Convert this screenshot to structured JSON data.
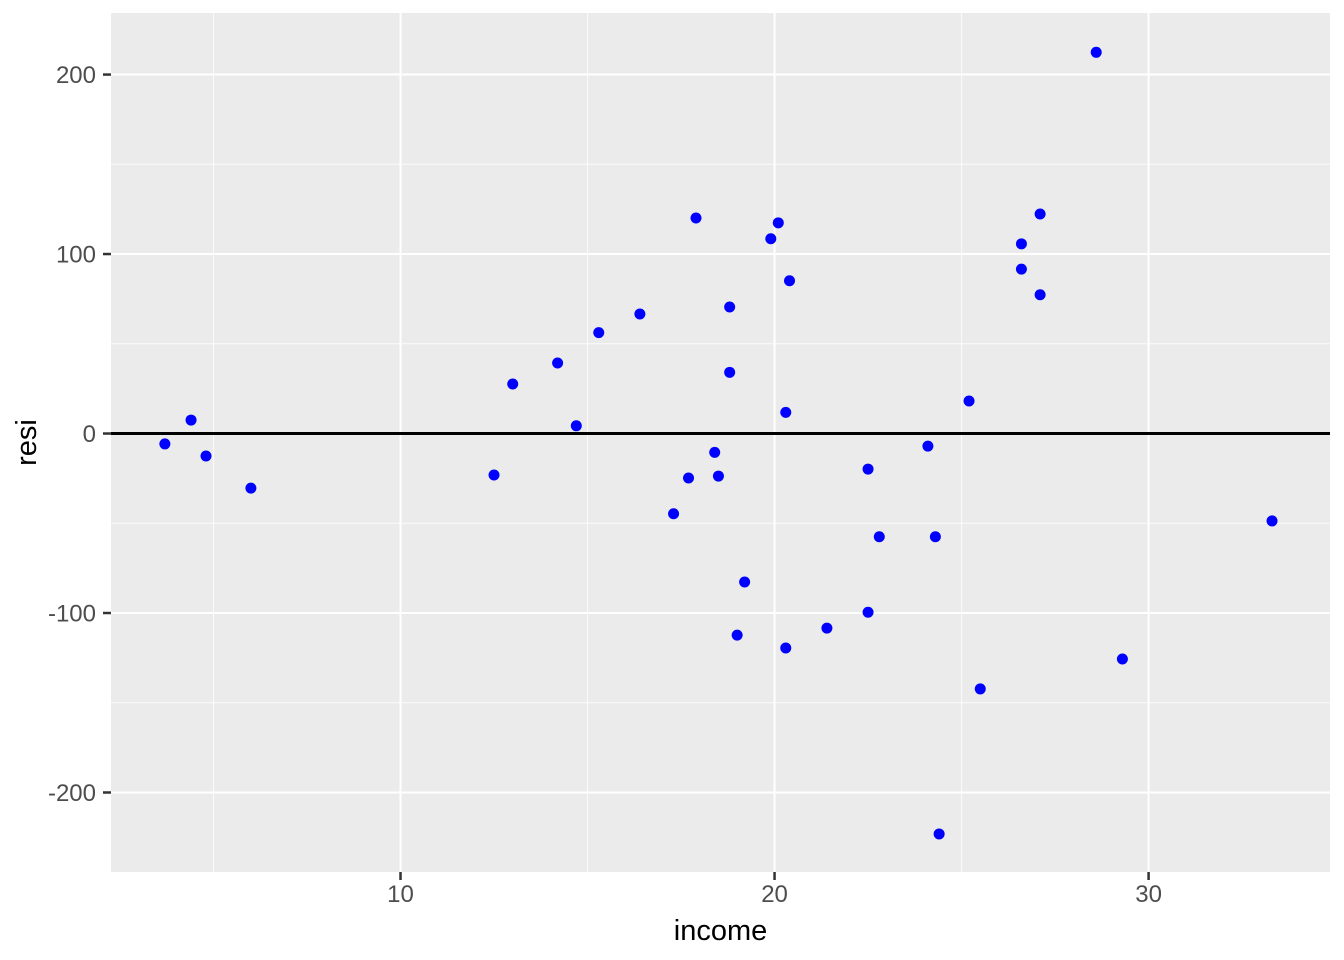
{
  "chart_data": {
    "type": "scatter",
    "title": "",
    "xlabel": "income",
    "ylabel": "resi",
    "legend": false,
    "grid": true,
    "xlim": [
      2.26,
      34.85
    ],
    "ylim": [
      -244.3,
      234.3
    ],
    "x_ticks": [
      10,
      20,
      30
    ],
    "x_tick_labels": [
      "10",
      "20",
      "30"
    ],
    "x_minor_ticks": [
      5,
      15,
      25,
      35
    ],
    "y_ticks": [
      -200,
      -100,
      0,
      100,
      200
    ],
    "y_tick_labels": [
      "-200",
      "-100",
      "0",
      "100",
      "200"
    ],
    "y_minor_ticks": [
      -250,
      -150,
      -50,
      50,
      150,
      250
    ],
    "reference_line_y": 0,
    "colors": {
      "point": "#0000FF",
      "panel_background": "#EBEBEB",
      "grid_major": "#FFFFFF",
      "grid_minor": "#FFFFFF",
      "tick_mark": "#333333",
      "tick_label": "#4D4D4D",
      "axis_title": "#000000",
      "reference_line": "#000000"
    },
    "points": [
      {
        "income": 3.7,
        "resi": -5.8
      },
      {
        "income": 4.4,
        "resi": 7.5
      },
      {
        "income": 4.8,
        "resi": -12.5
      },
      {
        "income": 6.0,
        "resi": -30.4
      },
      {
        "income": 12.5,
        "resi": -23.1
      },
      {
        "income": 13.0,
        "resi": 27.6
      },
      {
        "income": 14.2,
        "resi": 39.3
      },
      {
        "income": 14.7,
        "resi": 4.3
      },
      {
        "income": 15.3,
        "resi": 56.2
      },
      {
        "income": 16.4,
        "resi": 66.6
      },
      {
        "income": 17.3,
        "resi": -44.7
      },
      {
        "income": 17.7,
        "resi": -24.8
      },
      {
        "income": 17.9,
        "resi": 120.1
      },
      {
        "income": 18.4,
        "resi": -10.5
      },
      {
        "income": 18.5,
        "resi": -23.7
      },
      {
        "income": 18.8,
        "resi": 70.5
      },
      {
        "income": 18.8,
        "resi": 34.1
      },
      {
        "income": 19.0,
        "resi": -112.3
      },
      {
        "income": 19.2,
        "resi": -82.7
      },
      {
        "income": 19.9,
        "resi": 108.5
      },
      {
        "income": 20.1,
        "resi": 117.4
      },
      {
        "income": 20.3,
        "resi": -119.5
      },
      {
        "income": 20.3,
        "resi": 11.8
      },
      {
        "income": 20.4,
        "resi": 85.1
      },
      {
        "income": 21.4,
        "resi": -108.4
      },
      {
        "income": 22.5,
        "resi": -99.6
      },
      {
        "income": 22.5,
        "resi": -19.8
      },
      {
        "income": 22.8,
        "resi": -57.5
      },
      {
        "income": 24.1,
        "resi": -7.0
      },
      {
        "income": 24.3,
        "resi": -57.5
      },
      {
        "income": 24.4,
        "resi": -223.1
      },
      {
        "income": 25.2,
        "resi": 18.1
      },
      {
        "income": 25.5,
        "resi": -142.3
      },
      {
        "income": 26.6,
        "resi": 105.7
      },
      {
        "income": 26.6,
        "resi": 91.6
      },
      {
        "income": 27.1,
        "resi": 122.3
      },
      {
        "income": 27.1,
        "resi": 77.3
      },
      {
        "income": 28.6,
        "resi": 212.4
      },
      {
        "income": 29.3,
        "resi": -125.6
      },
      {
        "income": 33.3,
        "resi": -48.7
      }
    ]
  }
}
